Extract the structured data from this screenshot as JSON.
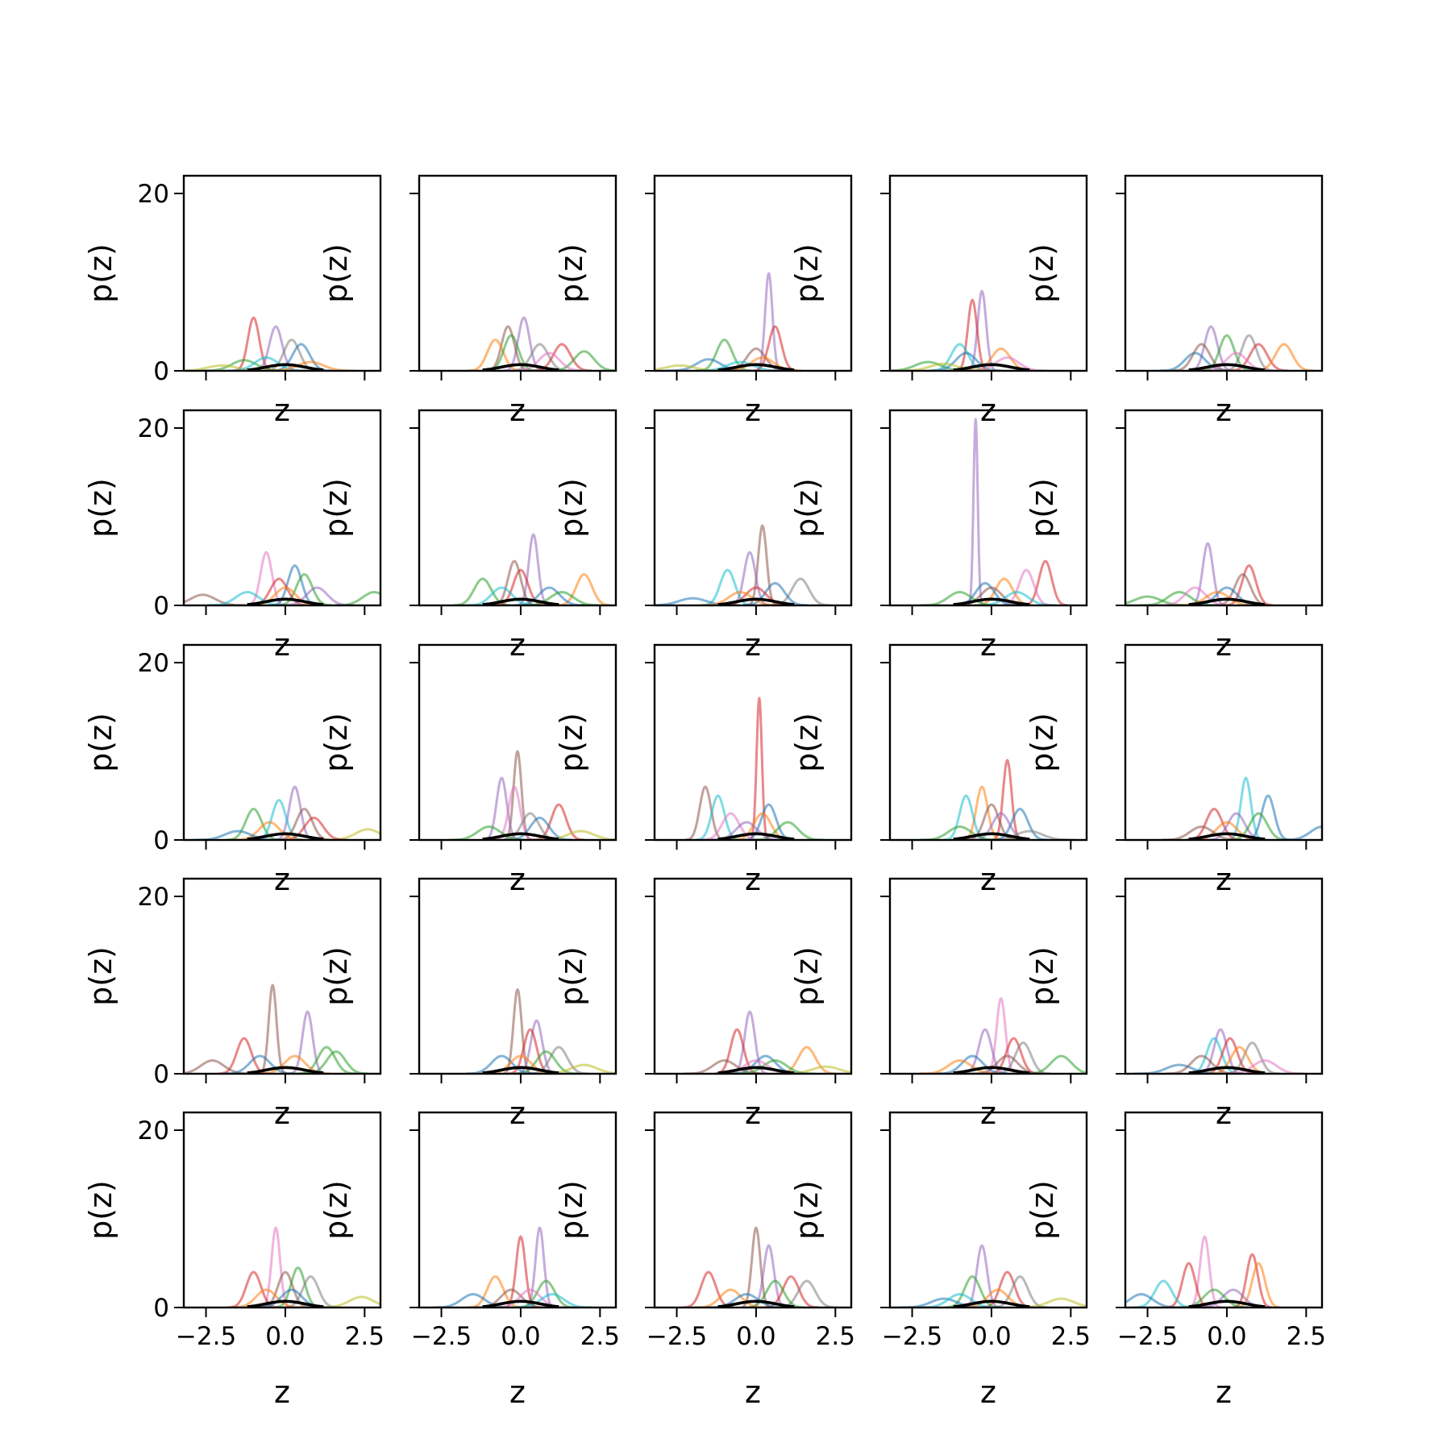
{
  "chart_data": {
    "type": "line",
    "layout": {
      "rows": 5,
      "cols": 5,
      "sharex": true,
      "sharey": true
    },
    "xlabel": "z",
    "ylabel": "p(z)",
    "xlim": [
      -3.2,
      3.0
    ],
    "ylim": [
      0,
      22
    ],
    "xticks": [
      -2.5,
      0.0,
      2.5
    ],
    "xtick_labels": [
      "−2.5",
      "0.0",
      "2.5"
    ],
    "yticks": [
      0,
      20
    ],
    "ytick_labels": [
      "0",
      "20"
    ],
    "series_colors": [
      "#1f77b4",
      "#ff7f0e",
      "#2ca02c",
      "#d62728",
      "#9467bd",
      "#8c564b",
      "#e377c2",
      "#7f7f7f",
      "#bcbd22",
      "#17becf"
    ],
    "mean_color": "#000000",
    "panels": [
      {
        "peaks": [
          [
            -1.0,
            6,
            3
          ],
          [
            -0.3,
            5,
            4
          ],
          [
            0.2,
            3.5,
            7
          ],
          [
            0.5,
            3,
            0
          ],
          [
            -1.3,
            1.2,
            2
          ],
          [
            -2.0,
            0.6,
            8
          ],
          [
            -0.6,
            1.5,
            9
          ],
          [
            0.8,
            1,
            1
          ]
        ]
      },
      {
        "peaks": [
          [
            0.1,
            6,
            4
          ],
          [
            -0.4,
            5,
            5
          ],
          [
            -0.8,
            3.5,
            1
          ],
          [
            0.6,
            3,
            7
          ],
          [
            1.3,
            3,
            3
          ],
          [
            2.0,
            2.2,
            2
          ],
          [
            -0.3,
            4,
            2
          ],
          [
            0.9,
            2,
            6
          ]
        ]
      },
      {
        "peaks": [
          [
            0.4,
            11,
            4
          ],
          [
            0.6,
            5,
            3
          ],
          [
            -1.0,
            3.5,
            2
          ],
          [
            0.0,
            2.5,
            5
          ],
          [
            -1.5,
            1.3,
            0
          ],
          [
            -2.4,
            0.6,
            8
          ],
          [
            0.2,
            1.5,
            1
          ],
          [
            -0.5,
            1,
            9
          ]
        ]
      },
      {
        "peaks": [
          [
            -0.3,
            9,
            4
          ],
          [
            -0.6,
            8,
            3
          ],
          [
            -1.0,
            3,
            9
          ],
          [
            0.3,
            2.5,
            1
          ],
          [
            -2.0,
            1,
            2
          ],
          [
            -0.8,
            2,
            0
          ],
          [
            0.5,
            1.5,
            6
          ],
          [
            -1.5,
            0.8,
            8
          ]
        ]
      },
      {
        "peaks": [
          [
            -0.5,
            5,
            4
          ],
          [
            0.7,
            4,
            7
          ],
          [
            1.0,
            3,
            3
          ],
          [
            1.8,
            3,
            1
          ],
          [
            -1.0,
            2,
            0
          ],
          [
            0.0,
            4,
            2
          ],
          [
            -0.8,
            3,
            5
          ],
          [
            0.3,
            2,
            6
          ]
        ]
      },
      {
        "peaks": [
          [
            -0.6,
            6,
            6
          ],
          [
            0.3,
            4.5,
            0
          ],
          [
            0.6,
            3.5,
            2
          ],
          [
            -0.2,
            3,
            3
          ],
          [
            -2.6,
            1.2,
            5
          ],
          [
            2.8,
            1.5,
            2
          ],
          [
            0.0,
            2,
            1
          ],
          [
            -1.2,
            1.5,
            9
          ],
          [
            1.0,
            2,
            4
          ]
        ]
      },
      {
        "peaks": [
          [
            0.4,
            8,
            4
          ],
          [
            -0.2,
            5,
            5
          ],
          [
            -1.2,
            3,
            2
          ],
          [
            2.0,
            3.5,
            1
          ],
          [
            0.0,
            4,
            3
          ],
          [
            0.9,
            2,
            0
          ],
          [
            -0.6,
            2,
            9
          ],
          [
            1.3,
            1.5,
            2
          ]
        ]
      },
      {
        "peaks": [
          [
            0.2,
            9,
            5
          ],
          [
            -0.2,
            6,
            4
          ],
          [
            -0.9,
            4,
            9
          ],
          [
            1.4,
            3,
            7
          ],
          [
            0.6,
            2.5,
            0
          ],
          [
            -2.0,
            0.8,
            0
          ],
          [
            0.0,
            2,
            3
          ],
          [
            -0.5,
            1.5,
            1
          ]
        ]
      },
      {
        "peaks": [
          [
            -0.5,
            21,
            4
          ],
          [
            1.7,
            5,
            3
          ],
          [
            1.1,
            4,
            6
          ],
          [
            0.4,
            3,
            1
          ],
          [
            -0.2,
            2.5,
            0
          ],
          [
            -1.0,
            1.5,
            2
          ],
          [
            0.0,
            2,
            5
          ],
          [
            0.8,
            1.5,
            9
          ]
        ]
      },
      {
        "peaks": [
          [
            -0.6,
            7,
            4
          ],
          [
            0.7,
            4.5,
            3
          ],
          [
            0.5,
            3.5,
            5
          ],
          [
            -1.5,
            1.5,
            2
          ],
          [
            -2.5,
            1,
            2
          ],
          [
            -1.0,
            2,
            6
          ],
          [
            0.0,
            2,
            0
          ],
          [
            -0.3,
            1.5,
            1
          ]
        ]
      },
      {
        "peaks": [
          [
            0.3,
            6,
            4
          ],
          [
            -1.0,
            3.5,
            2
          ],
          [
            -0.2,
            4.5,
            9
          ],
          [
            0.6,
            3.5,
            5
          ],
          [
            2.6,
            1.2,
            8
          ],
          [
            0.9,
            2.5,
            3
          ],
          [
            -0.5,
            2,
            1
          ],
          [
            -1.5,
            1,
            0
          ]
        ]
      },
      {
        "peaks": [
          [
            -0.1,
            10,
            5
          ],
          [
            -0.6,
            7,
            4
          ],
          [
            -0.2,
            6,
            6
          ],
          [
            1.2,
            4,
            3
          ],
          [
            0.3,
            3,
            7
          ],
          [
            0.6,
            2.5,
            0
          ],
          [
            -1.0,
            1.5,
            2
          ],
          [
            1.9,
            1,
            8
          ]
        ]
      },
      {
        "peaks": [
          [
            0.1,
            16,
            3
          ],
          [
            -1.6,
            6,
            5
          ],
          [
            -1.2,
            5,
            9
          ],
          [
            0.4,
            4,
            0
          ],
          [
            -0.8,
            3,
            6
          ],
          [
            0.2,
            3,
            1
          ],
          [
            1.0,
            2,
            2
          ],
          [
            -0.3,
            2,
            4
          ]
        ]
      },
      {
        "peaks": [
          [
            0.5,
            9,
            3
          ],
          [
            -0.3,
            6,
            1
          ],
          [
            -0.8,
            5,
            9
          ],
          [
            0.0,
            4,
            5
          ],
          [
            0.9,
            3.5,
            0
          ],
          [
            0.3,
            3,
            4
          ],
          [
            -1.0,
            1.5,
            2
          ],
          [
            1.2,
            1,
            7
          ]
        ]
      },
      {
        "peaks": [
          [
            0.6,
            7,
            9
          ],
          [
            1.3,
            5,
            0
          ],
          [
            -0.4,
            3.5,
            3
          ],
          [
            0.3,
            3,
            4
          ],
          [
            1.0,
            3,
            2
          ],
          [
            3.0,
            1.5,
            0
          ],
          [
            0.0,
            2,
            1
          ],
          [
            -0.8,
            1.5,
            5
          ]
        ]
      },
      {
        "peaks": [
          [
            -0.4,
            10,
            5
          ],
          [
            0.7,
            7,
            4
          ],
          [
            -1.3,
            4,
            3
          ],
          [
            1.3,
            3,
            2
          ],
          [
            1.6,
            2.5,
            2
          ],
          [
            -2.3,
            1.5,
            5
          ],
          [
            0.3,
            2,
            1
          ],
          [
            -0.8,
            2,
            0
          ]
        ]
      },
      {
        "peaks": [
          [
            -0.1,
            9.5,
            5
          ],
          [
            0.5,
            6,
            4
          ],
          [
            0.3,
            5,
            3
          ],
          [
            1.2,
            3,
            7
          ],
          [
            0.8,
            2.5,
            2
          ],
          [
            -0.6,
            2,
            0
          ],
          [
            2.0,
            1,
            8
          ],
          [
            0.0,
            2,
            1
          ]
        ]
      },
      {
        "peaks": [
          [
            -0.2,
            7,
            4
          ],
          [
            -0.6,
            5,
            3
          ],
          [
            1.6,
            3,
            1
          ],
          [
            0.3,
            2,
            0
          ],
          [
            2.2,
            0.8,
            8
          ],
          [
            -1.0,
            1.5,
            5
          ],
          [
            0.6,
            1.5,
            2
          ],
          [
            0.0,
            1.5,
            6
          ]
        ]
      },
      {
        "peaks": [
          [
            0.3,
            8.5,
            6
          ],
          [
            -0.2,
            5,
            4
          ],
          [
            0.7,
            4,
            3
          ],
          [
            1.0,
            3.5,
            7
          ],
          [
            2.2,
            2,
            2
          ],
          [
            -0.6,
            2,
            0
          ],
          [
            -1.0,
            1.5,
            1
          ],
          [
            0.5,
            2,
            5
          ]
        ]
      },
      {
        "peaks": [
          [
            -0.2,
            5,
            4
          ],
          [
            -0.4,
            4,
            9
          ],
          [
            0.1,
            4,
            3
          ],
          [
            0.8,
            3.5,
            7
          ],
          [
            -1.5,
            1,
            0
          ],
          [
            0.4,
            3,
            1
          ],
          [
            -0.8,
            2,
            5
          ],
          [
            1.2,
            1.5,
            6
          ]
        ]
      },
      {
        "peaks": [
          [
            -0.3,
            9,
            6
          ],
          [
            0.0,
            4,
            5
          ],
          [
            -1.0,
            4,
            3
          ],
          [
            0.4,
            4.5,
            2
          ],
          [
            0.8,
            3.5,
            7
          ],
          [
            2.4,
            1.2,
            8
          ],
          [
            -0.6,
            2,
            1
          ],
          [
            0.2,
            2,
            0
          ]
        ]
      },
      {
        "peaks": [
          [
            0.6,
            9,
            4
          ],
          [
            0.0,
            8,
            3
          ],
          [
            -0.8,
            3.5,
            1
          ],
          [
            0.8,
            3,
            2
          ],
          [
            -1.5,
            1.5,
            0
          ],
          [
            -0.3,
            2,
            5
          ],
          [
            0.3,
            2,
            6
          ],
          [
            1.0,
            1.5,
            9
          ]
        ]
      },
      {
        "peaks": [
          [
            0.0,
            9,
            5
          ],
          [
            0.4,
            7,
            4
          ],
          [
            -1.5,
            4,
            3
          ],
          [
            1.1,
            3.5,
            3
          ],
          [
            1.6,
            3,
            7
          ],
          [
            0.6,
            3,
            2
          ],
          [
            -0.8,
            2,
            1
          ],
          [
            -0.3,
            1.5,
            0
          ]
        ]
      },
      {
        "peaks": [
          [
            -0.3,
            7,
            4
          ],
          [
            0.5,
            4,
            3
          ],
          [
            -0.6,
            3.5,
            2
          ],
          [
            0.9,
            3.5,
            7
          ],
          [
            2.2,
            1,
            8
          ],
          [
            -1.5,
            1,
            0
          ],
          [
            0.2,
            2,
            1
          ],
          [
            -1.0,
            1.5,
            9
          ]
        ]
      },
      {
        "peaks": [
          [
            -0.7,
            8,
            6
          ],
          [
            -1.2,
            5,
            3
          ],
          [
            0.8,
            6,
            3
          ],
          [
            1.0,
            5,
            1
          ],
          [
            -2.0,
            3,
            9
          ],
          [
            -2.7,
            1.5,
            0
          ],
          [
            0.2,
            2,
            4
          ],
          [
            -0.4,
            2,
            2
          ]
        ]
      }
    ]
  }
}
